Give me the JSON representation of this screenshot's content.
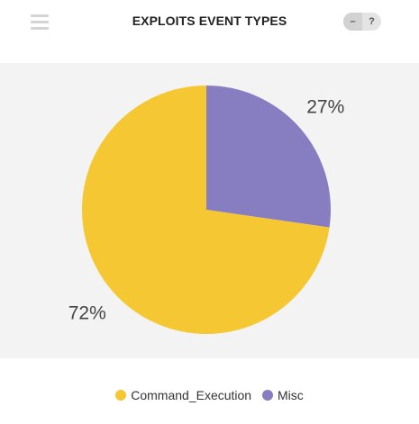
{
  "header": {
    "title": "EXPLOITS EVENT TYPES",
    "minus_label": "–",
    "help_label": "?"
  },
  "colors": {
    "Command_Execution": "#f5c732",
    "Misc": "#877dc1",
    "plot_background": "#f3f3f3"
  },
  "chart_data": {
    "type": "pie",
    "title": "EXPLOITS EVENT TYPES",
    "categories": [
      "Command_Execution",
      "Misc"
    ],
    "values": [
      72,
      27
    ],
    "labels": [
      "72%",
      "27%"
    ],
    "legend_position": "bottom-center"
  }
}
